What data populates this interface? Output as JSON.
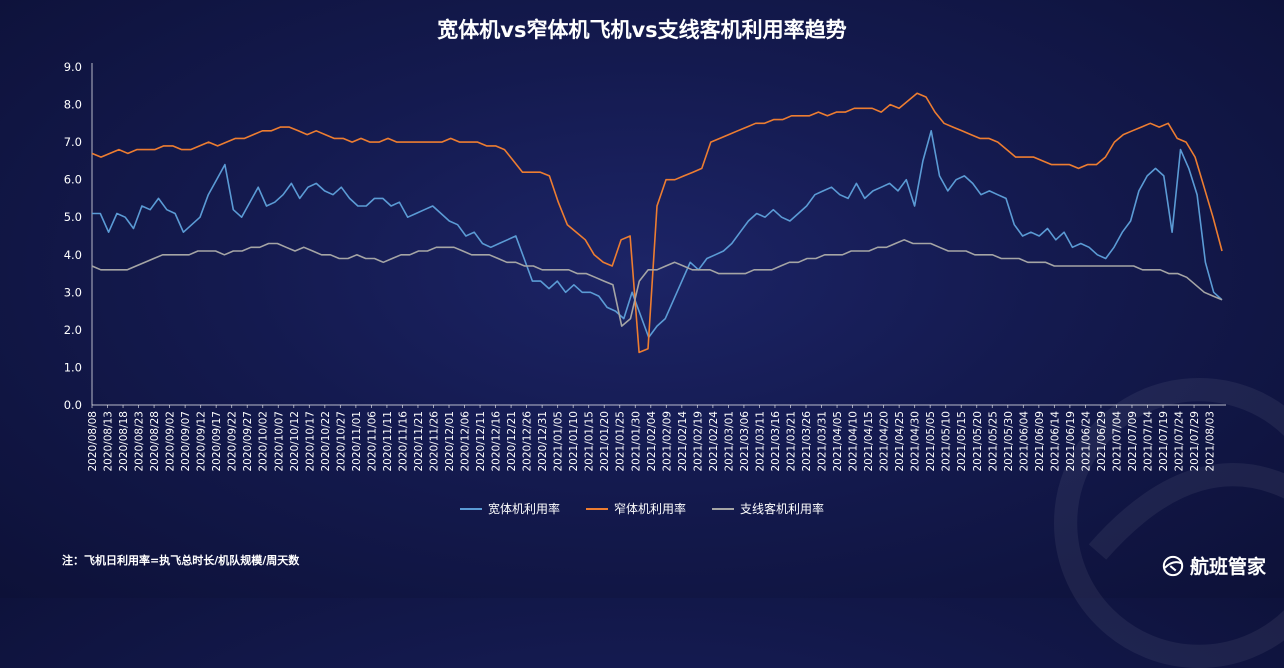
{
  "colors": {
    "wide": "#5b9bd5",
    "narrow": "#ed7d31",
    "regional": "#a5a5a5"
  },
  "legend": [
    {
      "name": "宽体机利用率",
      "color": "#5b9bd5"
    },
    {
      "name": "窄体机利用率",
      "color": "#ed7d31"
    },
    {
      "name": "支线客机利用率",
      "color": "#a5a5a5"
    }
  ],
  "footnote": "注：飞机日利用率=执飞总时长/机队规模/周天数",
  "brand": {
    "name": "航班管家",
    "logo_icon": "globe-plane-icon"
  },
  "chart_data": {
    "type": "line",
    "title": "宽体机vs窄体机飞机vs支线客机利用率趋势",
    "xlabel": "",
    "ylabel": "",
    "ylim": [
      0,
      9
    ],
    "y_ticks": [
      "0.0",
      "1.0",
      "2.0",
      "3.0",
      "4.0",
      "5.0",
      "6.0",
      "7.0",
      "8.0",
      "9.0"
    ],
    "x_start": "2020/08/08",
    "x_end": "2021/08/07",
    "legend_position": "bottom",
    "grid": false,
    "x_ticks": [
      "2020/08/08",
      "2020/08/13",
      "2020/08/18",
      "2020/08/23",
      "2020/08/28",
      "2020/09/02",
      "2020/09/07",
      "2020/09/12",
      "2020/09/17",
      "2020/09/22",
      "2020/09/27",
      "2020/10/02",
      "2020/10/07",
      "2020/10/12",
      "2020/10/17",
      "2020/10/22",
      "2020/10/27",
      "2020/11/01",
      "2020/11/06",
      "2020/11/11",
      "2020/11/16",
      "2020/11/21",
      "2020/11/26",
      "2020/12/01",
      "2020/12/06",
      "2020/12/11",
      "2020/12/16",
      "2020/12/21",
      "2020/12/26",
      "2020/12/31",
      "2021/01/05",
      "2021/01/10",
      "2021/01/15",
      "2021/01/20",
      "2021/01/25",
      "2021/01/30",
      "2021/02/04",
      "2021/02/09",
      "2021/02/14",
      "2021/02/19",
      "2021/02/24",
      "2021/03/01",
      "2021/03/06",
      "2021/03/11",
      "2021/03/16",
      "2021/03/21",
      "2021/03/26",
      "2021/03/31",
      "2021/04/05",
      "2021/04/10",
      "2021/04/15",
      "2021/04/20",
      "2021/04/25",
      "2021/04/30",
      "2021/05/05",
      "2021/05/10",
      "2021/05/15",
      "2021/05/20",
      "2021/05/25",
      "2021/05/30",
      "2021/06/04",
      "2021/06/09",
      "2021/06/14",
      "2021/06/19",
      "2021/06/24",
      "2021/06/29",
      "2021/07/04",
      "2021/07/09",
      "2021/07/14",
      "2021/07/19",
      "2021/07/24",
      "2021/07/29",
      "2021/08/03"
    ],
    "series": [
      {
        "name": "宽体机利用率",
        "color": "#5b9bd5",
        "values": [
          5.1,
          5.1,
          4.6,
          5.1,
          5.0,
          4.7,
          5.3,
          5.2,
          5.5,
          5.2,
          5.1,
          4.6,
          4.8,
          5.0,
          5.6,
          6.0,
          6.4,
          5.2,
          5.0,
          5.4,
          5.8,
          5.3,
          5.4,
          5.6,
          5.9,
          5.5,
          5.8,
          5.9,
          5.7,
          5.6,
          5.8,
          5.5,
          5.3,
          5.3,
          5.5,
          5.5,
          5.3,
          5.4,
          5.0,
          5.1,
          5.2,
          5.3,
          5.1,
          4.9,
          4.8,
          4.5,
          4.6,
          4.3,
          4.2,
          4.3,
          4.4,
          4.5,
          3.9,
          3.3,
          3.3,
          3.1,
          3.3,
          3.0,
          3.2,
          3.0,
          3.0,
          2.9,
          2.6,
          2.5,
          2.3,
          3.0,
          2.4,
          1.8,
          2.1,
          2.3,
          2.8,
          3.3,
          3.8,
          3.6,
          3.9,
          4.0,
          4.1,
          4.3,
          4.6,
          4.9,
          5.1,
          5.0,
          5.2,
          5.0,
          4.9,
          5.1,
          5.3,
          5.6,
          5.7,
          5.8,
          5.6,
          5.5,
          5.9,
          5.5,
          5.7,
          5.8,
          5.9,
          5.7,
          6.0,
          5.3,
          6.5,
          7.3,
          6.1,
          5.7,
          6.0,
          6.1,
          5.9,
          5.6,
          5.7,
          5.6,
          5.5,
          4.8,
          4.5,
          4.6,
          4.5,
          4.7,
          4.4,
          4.6,
          4.2,
          4.3,
          4.2,
          4.0,
          3.9,
          4.2,
          4.6,
          4.9,
          5.7,
          6.1,
          6.3,
          6.1,
          4.6,
          6.8,
          6.3,
          5.6,
          3.8,
          3.0,
          2.8
        ]
      },
      {
        "name": "窄体机利用率",
        "color": "#ed7d31",
        "values": [
          6.7,
          6.6,
          6.7,
          6.8,
          6.7,
          6.8,
          6.8,
          6.8,
          6.9,
          6.9,
          6.8,
          6.8,
          6.9,
          7.0,
          6.9,
          7.0,
          7.1,
          7.1,
          7.2,
          7.3,
          7.3,
          7.4,
          7.4,
          7.3,
          7.2,
          7.3,
          7.2,
          7.1,
          7.1,
          7.0,
          7.1,
          7.0,
          7.0,
          7.1,
          7.0,
          7.0,
          7.0,
          7.0,
          7.0,
          7.0,
          7.1,
          7.0,
          7.0,
          7.0,
          6.9,
          6.9,
          6.8,
          6.5,
          6.2,
          6.2,
          6.2,
          6.1,
          5.4,
          4.8,
          4.6,
          4.4,
          4.0,
          3.8,
          3.7,
          4.4,
          4.5,
          1.4,
          1.5,
          5.3,
          6.0,
          6.0,
          6.1,
          6.2,
          6.3,
          7.0,
          7.1,
          7.2,
          7.3,
          7.4,
          7.5,
          7.5,
          7.6,
          7.6,
          7.7,
          7.7,
          7.7,
          7.8,
          7.7,
          7.8,
          7.8,
          7.9,
          7.9,
          7.9,
          7.8,
          8.0,
          7.9,
          8.1,
          8.3,
          8.2,
          7.8,
          7.5,
          7.4,
          7.3,
          7.2,
          7.1,
          7.1,
          7.0,
          6.8,
          6.6,
          6.6,
          6.6,
          6.5,
          6.4,
          6.4,
          6.4,
          6.3,
          6.4,
          6.4,
          6.6,
          7.0,
          7.2,
          7.3,
          7.4,
          7.5,
          7.4,
          7.5,
          7.1,
          7.0,
          6.6,
          5.8,
          5.0,
          4.1
        ]
      },
      {
        "name": "支线客机利用率",
        "color": "#a5a5a5",
        "values": [
          3.7,
          3.6,
          3.6,
          3.6,
          3.6,
          3.7,
          3.8,
          3.9,
          4.0,
          4.0,
          4.0,
          4.0,
          4.1,
          4.1,
          4.1,
          4.0,
          4.1,
          4.1,
          4.2,
          4.2,
          4.3,
          4.3,
          4.2,
          4.1,
          4.2,
          4.1,
          4.0,
          4.0,
          3.9,
          3.9,
          4.0,
          3.9,
          3.9,
          3.8,
          3.9,
          4.0,
          4.0,
          4.1,
          4.1,
          4.2,
          4.2,
          4.2,
          4.1,
          4.0,
          4.0,
          4.0,
          3.9,
          3.8,
          3.8,
          3.7,
          3.7,
          3.6,
          3.6,
          3.6,
          3.6,
          3.5,
          3.5,
          3.4,
          3.3,
          3.2,
          2.1,
          2.3,
          3.3,
          3.6,
          3.6,
          3.7,
          3.8,
          3.7,
          3.6,
          3.6,
          3.6,
          3.5,
          3.5,
          3.5,
          3.5,
          3.6,
          3.6,
          3.6,
          3.7,
          3.8,
          3.8,
          3.9,
          3.9,
          4.0,
          4.0,
          4.0,
          4.1,
          4.1,
          4.1,
          4.2,
          4.2,
          4.3,
          4.4,
          4.3,
          4.3,
          4.3,
          4.2,
          4.1,
          4.1,
          4.1,
          4.0,
          4.0,
          4.0,
          3.9,
          3.9,
          3.9,
          3.8,
          3.8,
          3.8,
          3.7,
          3.7,
          3.7,
          3.7,
          3.7,
          3.7,
          3.7,
          3.7,
          3.7,
          3.7,
          3.6,
          3.6,
          3.6,
          3.5,
          3.5,
          3.4,
          3.2,
          3.0,
          2.9,
          2.8
        ]
      }
    ]
  }
}
